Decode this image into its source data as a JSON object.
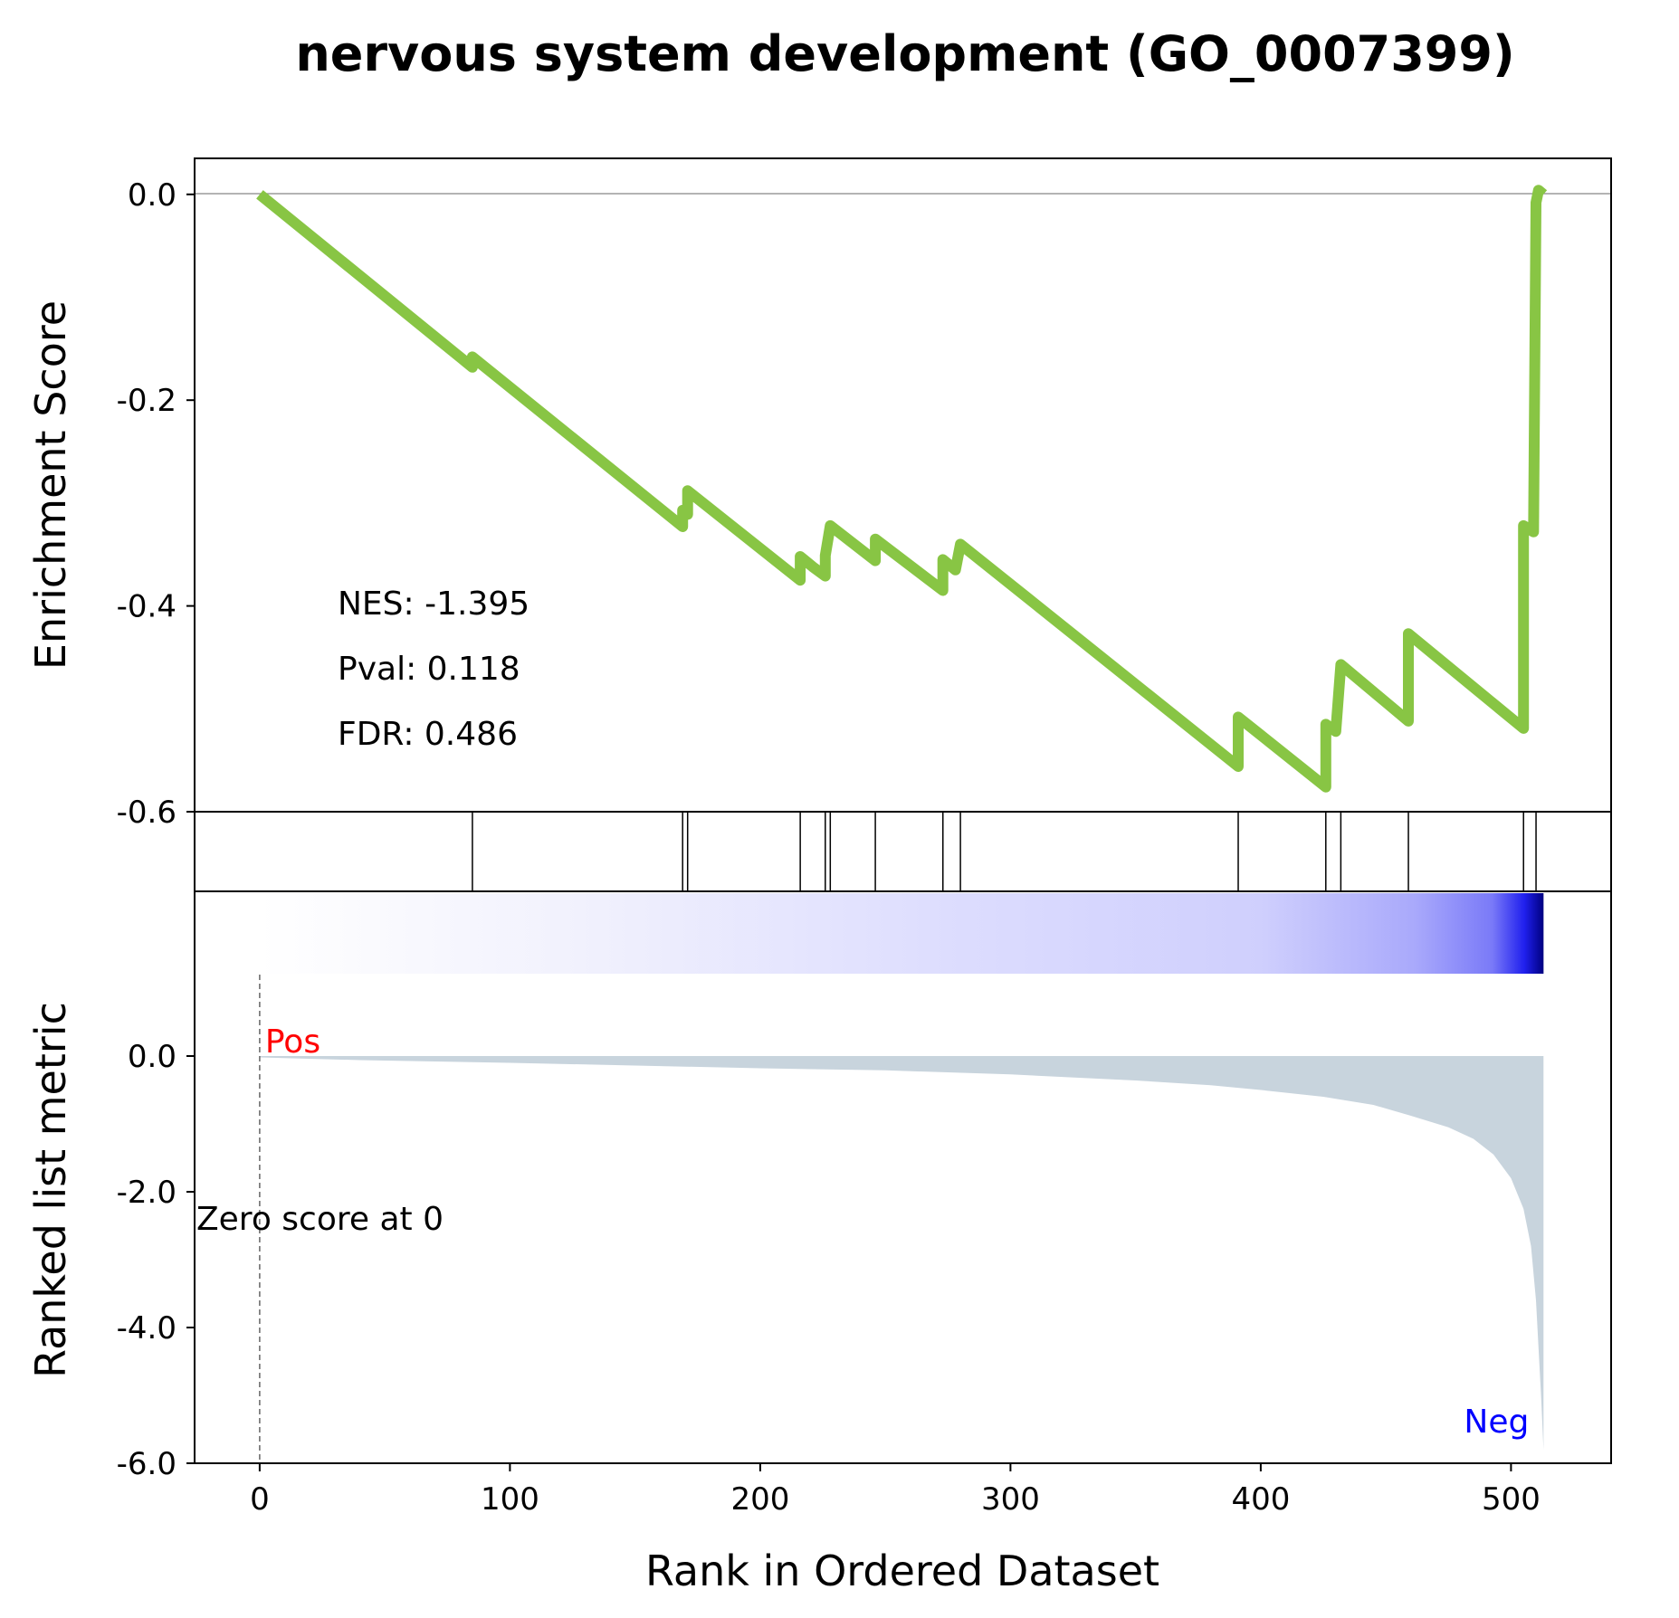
{
  "chart_data": {
    "type": "line",
    "title": "nervous system development (GO_0007399)",
    "xlabel": "Rank in Ordered Dataset",
    "x_ticks": [
      0,
      100,
      200,
      300,
      400,
      500
    ],
    "xlim": [
      -26,
      540
    ],
    "panels": {
      "es": {
        "ylabel": "Enrichment Score",
        "ylim": [
          -0.6,
          0.035
        ],
        "y_ticks": [
          0.0,
          -0.2,
          -0.4,
          -0.6
        ],
        "line_color": "#88c544",
        "stats": [
          "NES: -1.395",
          "Pval: 0.118",
          "FDR: 0.486"
        ],
        "points": [
          [
            0,
            0.0
          ],
          [
            85,
            -0.168
          ],
          [
            85,
            -0.158
          ],
          [
            169,
            -0.323
          ],
          [
            169,
            -0.307
          ],
          [
            171,
            -0.311
          ],
          [
            171,
            -0.288
          ],
          [
            216,
            -0.375
          ],
          [
            216,
            -0.352
          ],
          [
            221,
            -0.362
          ],
          [
            226,
            -0.371
          ],
          [
            226,
            -0.351
          ],
          [
            228,
            -0.322
          ],
          [
            246,
            -0.356
          ],
          [
            246,
            -0.335
          ],
          [
            273,
            -0.385
          ],
          [
            273,
            -0.355
          ],
          [
            275,
            -0.359
          ],
          [
            278,
            -0.365
          ],
          [
            280,
            -0.34
          ],
          [
            391,
            -0.556
          ],
          [
            391,
            -0.508
          ],
          [
            426,
            -0.576
          ],
          [
            426,
            -0.515
          ],
          [
            430,
            -0.522
          ],
          [
            432,
            -0.457
          ],
          [
            459,
            -0.512
          ],
          [
            459,
            -0.427
          ],
          [
            505,
            -0.519
          ],
          [
            505,
            -0.322
          ],
          [
            509,
            -0.328
          ],
          [
            510,
            -0.008
          ],
          [
            511,
            0.004
          ],
          [
            513,
            0.0
          ]
        ]
      },
      "hits": {
        "positions": [
          85,
          169,
          171,
          216,
          226,
          228,
          246,
          273,
          280,
          391,
          426,
          432,
          459,
          505,
          510
        ]
      },
      "ranked": {
        "ylabel": "Ranked list metric",
        "ylim": [
          -6.0,
          1.2
        ],
        "y_ticks": [
          0.0,
          -2.0,
          -4.0,
          -6.0
        ],
        "fill_color": "#c8d4dd",
        "pos_label": "Pos",
        "neg_label": "Neg",
        "pos_color": "#ff0000",
        "neg_color": "#0000ff",
        "zero_label": "Zero score at 0",
        "zero_position": 0,
        "n_ranks": 513,
        "curve": [
          [
            0,
            -0.02
          ],
          [
            40,
            -0.06
          ],
          [
            100,
            -0.1
          ],
          [
            150,
            -0.14
          ],
          [
            200,
            -0.18
          ],
          [
            250,
            -0.21
          ],
          [
            300,
            -0.27
          ],
          [
            350,
            -0.36
          ],
          [
            380,
            -0.43
          ],
          [
            400,
            -0.5
          ],
          [
            425,
            -0.6
          ],
          [
            445,
            -0.72
          ],
          [
            460,
            -0.88
          ],
          [
            475,
            -1.05
          ],
          [
            485,
            -1.22
          ],
          [
            493,
            -1.45
          ],
          [
            500,
            -1.8
          ],
          [
            505,
            -2.25
          ],
          [
            508,
            -2.8
          ],
          [
            510,
            -3.6
          ],
          [
            512,
            -5.0
          ],
          [
            513,
            -5.8
          ]
        ]
      }
    }
  }
}
